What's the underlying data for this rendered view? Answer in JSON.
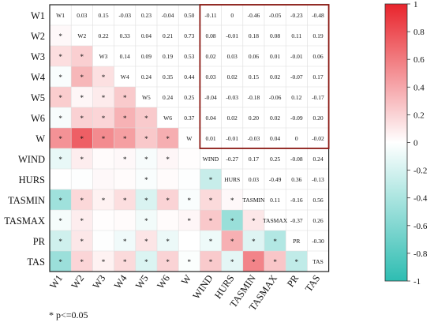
{
  "chart_data": {
    "type": "heatmap",
    "variables": [
      "W1",
      "W2",
      "W3",
      "W4",
      "W5",
      "W6",
      "W",
      "WIND",
      "HURS",
      "TASMIN",
      "TASMAX",
      "PR",
      "TAS"
    ],
    "upper_values": [
      [
        null,
        "0.03",
        "0.15",
        "-0.03",
        "0.23",
        "-0.04",
        "0.50",
        "-0.11",
        "0",
        "-0.46",
        "-0.05",
        "-0.23",
        "-0.48"
      ],
      [
        null,
        null,
        "0.22",
        "0.33",
        "0.04",
        "0.21",
        "0.73",
        "0.08",
        "-0.01",
        "0.18",
        "0.08",
        "0.11",
        "0.19"
      ],
      [
        null,
        null,
        null,
        "0.14",
        "0.09",
        "0.19",
        "0.53",
        "0.02",
        "0.03",
        "0.06",
        "0.01",
        "-0.01",
        "0.06"
      ],
      [
        null,
        null,
        null,
        null,
        "0.24",
        "0.35",
        "0.44",
        "0.03",
        "0.02",
        "0.15",
        "0.02",
        "-0.07",
        "0.17"
      ],
      [
        null,
        null,
        null,
        null,
        null,
        "0.24",
        "0.25",
        "-0.04",
        "-0.03",
        "-0.18",
        "-0.06",
        "0.12",
        "-0.17"
      ],
      [
        null,
        null,
        null,
        null,
        null,
        null,
        "0.37",
        "0.04",
        "0.02",
        "0.20",
        "0.02",
        "-0.09",
        "0.20"
      ],
      [
        null,
        null,
        null,
        null,
        null,
        null,
        null,
        "0.01",
        "-0.01",
        "-0.03",
        "0.04",
        "0",
        "-0.02"
      ],
      [
        null,
        null,
        null,
        null,
        null,
        null,
        null,
        null,
        "-0.27",
        "0.17",
        "0.25",
        "-0.08",
        "0.24"
      ],
      [
        null,
        null,
        null,
        null,
        null,
        null,
        null,
        null,
        null,
        "0.03",
        "-0.49",
        "0.36",
        "-0.13"
      ],
      [
        null,
        null,
        null,
        null,
        null,
        null,
        null,
        null,
        null,
        null,
        "0.11",
        "-0.16",
        "0.56"
      ],
      [
        null,
        null,
        null,
        null,
        null,
        null,
        null,
        null,
        null,
        null,
        null,
        "-0.37",
        "0.26"
      ],
      [
        null,
        null,
        null,
        null,
        null,
        null,
        null,
        null,
        null,
        null,
        null,
        null,
        "-0.30"
      ],
      [
        null,
        null,
        null,
        null,
        null,
        null,
        null,
        null,
        null,
        null,
        null,
        null,
        null
      ]
    ],
    "lower_values": [
      [
        null,
        null,
        null,
        null,
        null,
        null,
        null,
        null,
        null,
        null,
        null,
        null,
        null
      ],
      [
        0.03,
        null,
        null,
        null,
        null,
        null,
        null,
        null,
        null,
        null,
        null,
        null,
        null
      ],
      [
        0.15,
        0.22,
        null,
        null,
        null,
        null,
        null,
        null,
        null,
        null,
        null,
        null,
        null
      ],
      [
        -0.03,
        0.33,
        0.14,
        null,
        null,
        null,
        null,
        null,
        null,
        null,
        null,
        null,
        null
      ],
      [
        0.23,
        0.04,
        0.09,
        0.24,
        null,
        null,
        null,
        null,
        null,
        null,
        null,
        null,
        null
      ],
      [
        -0.04,
        0.21,
        0.19,
        0.35,
        0.24,
        null,
        null,
        null,
        null,
        null,
        null,
        null,
        null
      ],
      [
        0.5,
        0.73,
        0.53,
        0.44,
        0.25,
        0.37,
        null,
        null,
        null,
        null,
        null,
        null,
        null
      ],
      [
        -0.11,
        0.08,
        0.02,
        0.03,
        -0.04,
        0.04,
        0.01,
        null,
        null,
        null,
        null,
        null,
        null
      ],
      [
        0,
        -0.01,
        0.03,
        0.02,
        -0.03,
        0.02,
        -0.01,
        -0.27,
        null,
        null,
        null,
        null,
        null
      ],
      [
        -0.46,
        0.18,
        0.06,
        0.15,
        -0.18,
        0.2,
        -0.03,
        0.17,
        0.03,
        null,
        null,
        null,
        null
      ],
      [
        -0.05,
        0.08,
        0.01,
        0.02,
        -0.06,
        0.02,
        0.04,
        0.25,
        -0.49,
        0.11,
        null,
        null,
        null
      ],
      [
        -0.23,
        0.11,
        -0.01,
        -0.07,
        0.12,
        -0.09,
        0,
        -0.08,
        0.36,
        -0.16,
        -0.37,
        null,
        null
      ],
      [
        -0.48,
        0.19,
        0.06,
        0.17,
        -0.17,
        0.2,
        -0.02,
        0.24,
        -0.13,
        0.56,
        0.26,
        -0.3,
        null
      ]
    ],
    "significance_stars": [
      [
        null,
        null,
        null,
        null,
        null,
        null,
        null,
        null,
        null,
        null,
        null,
        null,
        null
      ],
      [
        true,
        null,
        null,
        null,
        null,
        null,
        null,
        null,
        null,
        null,
        null,
        null,
        null
      ],
      [
        true,
        true,
        null,
        null,
        null,
        null,
        null,
        null,
        null,
        null,
        null,
        null,
        null
      ],
      [
        true,
        true,
        true,
        null,
        null,
        null,
        null,
        null,
        null,
        null,
        null,
        null,
        null
      ],
      [
        true,
        true,
        true,
        true,
        null,
        null,
        null,
        null,
        null,
        null,
        null,
        null,
        null
      ],
      [
        true,
        true,
        true,
        true,
        true,
        null,
        null,
        null,
        null,
        null,
        null,
        null,
        null
      ],
      [
        true,
        true,
        true,
        true,
        true,
        true,
        null,
        null,
        null,
        null,
        null,
        null,
        null
      ],
      [
        true,
        true,
        false,
        true,
        true,
        true,
        false,
        null,
        null,
        null,
        null,
        null,
        null
      ],
      [
        false,
        false,
        false,
        false,
        true,
        false,
        false,
        true,
        null,
        null,
        null,
        null,
        null
      ],
      [
        true,
        true,
        true,
        true,
        true,
        true,
        true,
        true,
        true,
        null,
        null,
        null,
        null
      ],
      [
        true,
        true,
        false,
        false,
        true,
        false,
        true,
        true,
        true,
        true,
        null,
        null,
        null
      ],
      [
        true,
        true,
        false,
        true,
        true,
        true,
        false,
        true,
        true,
        true,
        true,
        null,
        null
      ],
      [
        true,
        true,
        true,
        true,
        true,
        true,
        true,
        true,
        true,
        true,
        true,
        true,
        null
      ]
    ],
    "highlight_block": {
      "rows": [
        "W1",
        "W"
      ],
      "cols": [
        "WIND",
        "TAS"
      ]
    },
    "colorbar": {
      "ticks": [
        1,
        0.8,
        0.6,
        0.4,
        0.2,
        0,
        -0.2,
        -0.4,
        -0.6,
        -0.8,
        -1
      ],
      "range": [
        -1,
        1
      ]
    },
    "colors": {
      "positive": "#e8242c",
      "negative": "#2ebdb2",
      "neutral": "#ffffff",
      "highlight_border": "#8b1a14"
    },
    "footnote": "* p<=0.05"
  }
}
